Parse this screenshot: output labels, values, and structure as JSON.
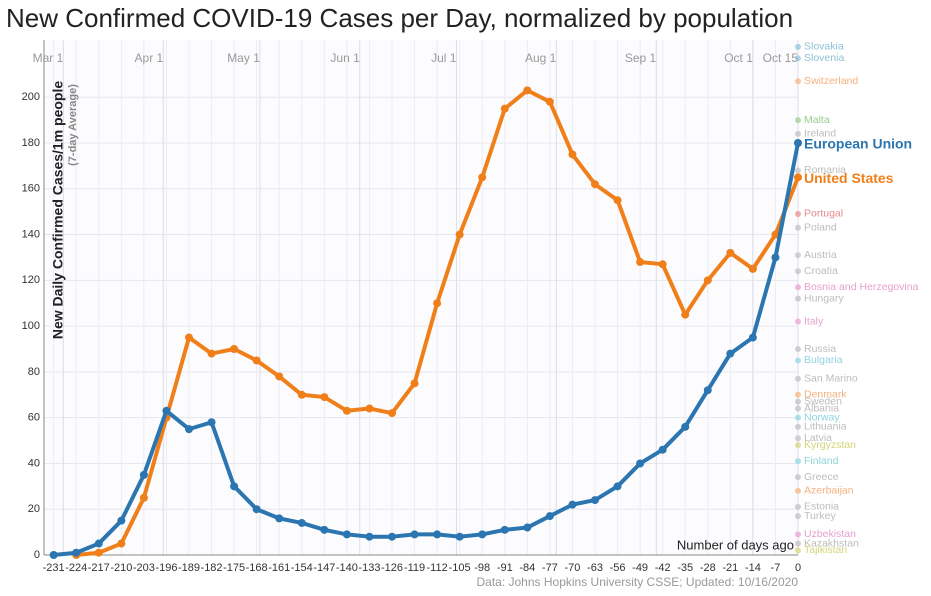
{
  "chart_data": {
    "type": "line",
    "title": "New Confirmed COVID-19 Cases per Day, normalized by population",
    "y_label": "New Daily Confirmed Cases/1m people",
    "y_sublabel": "(7-day Average)",
    "x_annotation": "Number of days ago",
    "source": "Data: Johns Hopkins University CSSE; Updated: 10/16/2020",
    "x": [
      -231,
      -224,
      -217,
      -210,
      -203,
      -196,
      -189,
      -182,
      -175,
      -168,
      -161,
      -154,
      -147,
      -140,
      -133,
      -126,
      -119,
      -112,
      -105,
      -98,
      -91,
      -84,
      -77,
      -70,
      -63,
      -56,
      -49,
      -42,
      -35,
      -28,
      -21,
      -14,
      -7,
      0
    ],
    "series": [
      {
        "name": "United States",
        "color": "#f07f1a",
        "values": [
          null,
          0,
          1,
          5,
          25,
          60,
          95,
          88,
          90,
          85,
          78,
          70,
          69,
          63,
          64,
          62,
          75,
          110,
          140,
          165,
          195,
          203,
          198,
          175,
          162,
          155,
          128,
          127,
          105,
          120,
          132,
          125,
          140,
          165
        ]
      },
      {
        "name": "European Union",
        "color": "#2b75b0",
        "values": [
          0,
          1,
          5,
          15,
          35,
          63,
          55,
          58,
          30,
          20,
          16,
          14,
          11,
          9,
          8,
          8,
          9,
          9,
          8,
          9,
          11,
          12,
          17,
          22,
          24,
          30,
          40,
          46,
          56,
          72,
          88,
          95,
          130,
          180
        ]
      }
    ],
    "end_labels": [
      {
        "text": "Slovakia",
        "value": 222,
        "color": "#8fc0d9"
      },
      {
        "text": "Slovenia",
        "value": 217,
        "color": "#8fc0d9"
      },
      {
        "text": "Switzerland",
        "value": 207,
        "color": "#f5b07f"
      },
      {
        "text": "Malta",
        "value": 190,
        "color": "#9ccc8a"
      },
      {
        "text": "Ireland",
        "value": 184,
        "color": "#bdbdbd"
      },
      {
        "text": "Romania",
        "value": 168,
        "color": "#bdbdbd"
      },
      {
        "text": "Portugal",
        "value": 149,
        "color": "#e58b8b"
      },
      {
        "text": "Poland",
        "value": 143,
        "color": "#bdbdbd"
      },
      {
        "text": "Austria",
        "value": 131,
        "color": "#bdbdbd"
      },
      {
        "text": "Croatia",
        "value": 124,
        "color": "#bdbdbd"
      },
      {
        "text": "Bosnia and Herzegovina",
        "value": 117,
        "color": "#e7a0d0"
      },
      {
        "text": "Hungary",
        "value": 112,
        "color": "#bdbdbd"
      },
      {
        "text": "Italy",
        "value": 102,
        "color": "#e7a0d0"
      },
      {
        "text": "Russia",
        "value": 90,
        "color": "#bdbdbd"
      },
      {
        "text": "Bulgaria",
        "value": 85,
        "color": "#8fd3df"
      },
      {
        "text": "San Marino",
        "value": 77,
        "color": "#bdbdbd"
      },
      {
        "text": "Denmark",
        "value": 70,
        "color": "#f5b07f"
      },
      {
        "text": "Sweden",
        "value": 67,
        "color": "#bdbdbd"
      },
      {
        "text": "Albania",
        "value": 64,
        "color": "#bdbdbd"
      },
      {
        "text": "Norway",
        "value": 60,
        "color": "#8fd3df"
      },
      {
        "text": "Lithuania",
        "value": 56,
        "color": "#bdbdbd"
      },
      {
        "text": "Latvia",
        "value": 51,
        "color": "#bdbdbd"
      },
      {
        "text": "Kyrgyzstan",
        "value": 48,
        "color": "#d4d47a"
      },
      {
        "text": "Finland",
        "value": 41,
        "color": "#8fd3df"
      },
      {
        "text": "Greece",
        "value": 34,
        "color": "#bdbdbd"
      },
      {
        "text": "Azerbaijan",
        "value": 28,
        "color": "#f5b07f"
      },
      {
        "text": "Estonia",
        "value": 21,
        "color": "#bdbdbd"
      },
      {
        "text": "Turkey",
        "value": 17,
        "color": "#bdbdbd"
      },
      {
        "text": "Uzbekistan",
        "value": 9,
        "color": "#e7a0d0"
      },
      {
        "text": "Kazakhstan",
        "value": 5,
        "color": "#bdbdbd"
      },
      {
        "text": "Tajikistan",
        "value": 2,
        "color": "#d4d47a"
      }
    ],
    "xlim": [
      -234,
      0
    ],
    "ylim": [
      0,
      225
    ],
    "xticks": [
      -231,
      -224,
      -217,
      -210,
      -203,
      -196,
      -189,
      -182,
      -175,
      -168,
      -161,
      -154,
      -147,
      -140,
      -133,
      -126,
      -119,
      -112,
      -105,
      -98,
      -91,
      -84,
      -77,
      -70,
      -63,
      -56,
      -49,
      -42,
      -35,
      -28,
      -21,
      -14,
      -7,
      0
    ],
    "yticks": [
      0,
      20,
      40,
      60,
      80,
      100,
      120,
      140,
      160,
      180,
      200
    ],
    "date_ticks": [
      {
        "value": -228,
        "label": "Mar 1"
      },
      {
        "value": -197,
        "label": "Apr 1"
      },
      {
        "value": -167,
        "label": "May 1"
      },
      {
        "value": -136,
        "label": "Jun 1"
      },
      {
        "value": -106,
        "label": "Jul 1"
      },
      {
        "value": -75,
        "label": "Aug 1"
      },
      {
        "value": -44,
        "label": "Sep 1"
      },
      {
        "value": -14,
        "label": "Oct 1"
      },
      {
        "value": 0,
        "label": "Oct 15"
      }
    ],
    "grid": true
  }
}
